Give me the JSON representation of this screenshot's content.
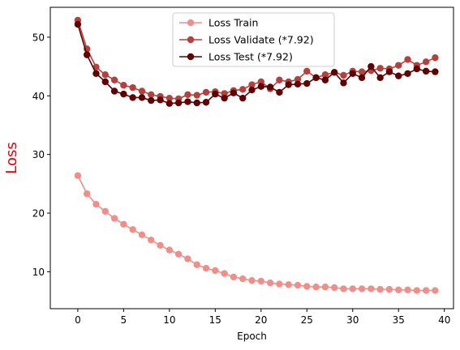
{
  "chart_data": {
    "type": "line",
    "xlabel": "Epoch",
    "ylabel": "Loss",
    "ylabel_color": "#e8000b",
    "xlim": [
      -3,
      41
    ],
    "ylim": [
      3.7,
      55.1
    ],
    "xticks": [
      0,
      5,
      10,
      15,
      20,
      25,
      30,
      35,
      40
    ],
    "yticks": [
      10,
      20,
      30,
      40,
      50
    ],
    "grid": false,
    "legend_position": "upper center",
    "x": [
      0,
      1,
      2,
      3,
      4,
      5,
      6,
      7,
      8,
      9,
      10,
      11,
      12,
      13,
      14,
      15,
      16,
      17,
      18,
      19,
      20,
      21,
      22,
      23,
      24,
      25,
      26,
      27,
      28,
      29,
      30,
      31,
      32,
      33,
      34,
      35,
      36,
      37,
      38,
      39
    ],
    "series": [
      {
        "name": "Loss Train",
        "color": "#f08f8a",
        "values": [
          26.4,
          23.3,
          21.5,
          20.3,
          19.1,
          18.1,
          17.2,
          16.3,
          15.4,
          14.5,
          13.7,
          13.0,
          12.2,
          11.2,
          10.6,
          10.2,
          9.7,
          9.1,
          8.8,
          8.5,
          8.4,
          8.1,
          7.9,
          7.8,
          7.7,
          7.5,
          7.4,
          7.4,
          7.3,
          7.1,
          7.1,
          7.1,
          7.1,
          7.0,
          7.0,
          6.9,
          6.9,
          6.8,
          6.8,
          6.8
        ]
      },
      {
        "name": "Loss Validate (*7.92)",
        "color": "#b5413c",
        "values": [
          52.9,
          48.0,
          44.9,
          43.6,
          42.7,
          41.8,
          41.4,
          40.8,
          40.2,
          39.9,
          39.6,
          39.5,
          40.2,
          40.1,
          40.6,
          40.7,
          40.4,
          40.9,
          41.1,
          41.9,
          42.4,
          41.2,
          42.7,
          42.4,
          42.8,
          44.2,
          43.1,
          43.6,
          44.0,
          43.5,
          44.2,
          44.1,
          44.3,
          44.7,
          44.6,
          45.2,
          46.2,
          45.2,
          45.8,
          46.5
        ]
      },
      {
        "name": "Loss Test (*7.92)",
        "color": "#5e0202",
        "values": [
          52.2,
          47.0,
          43.8,
          42.4,
          40.8,
          40.3,
          39.7,
          39.7,
          39.2,
          39.3,
          38.7,
          38.8,
          39.0,
          38.8,
          38.9,
          40.3,
          39.6,
          40.5,
          39.6,
          41.0,
          41.6,
          41.5,
          40.6,
          41.9,
          42.0,
          42.1,
          43.1,
          42.7,
          44.0,
          42.2,
          43.8,
          43.1,
          45.0,
          43.1,
          44.1,
          43.4,
          43.8,
          44.6,
          44.2,
          44.1
        ]
      }
    ]
  }
}
